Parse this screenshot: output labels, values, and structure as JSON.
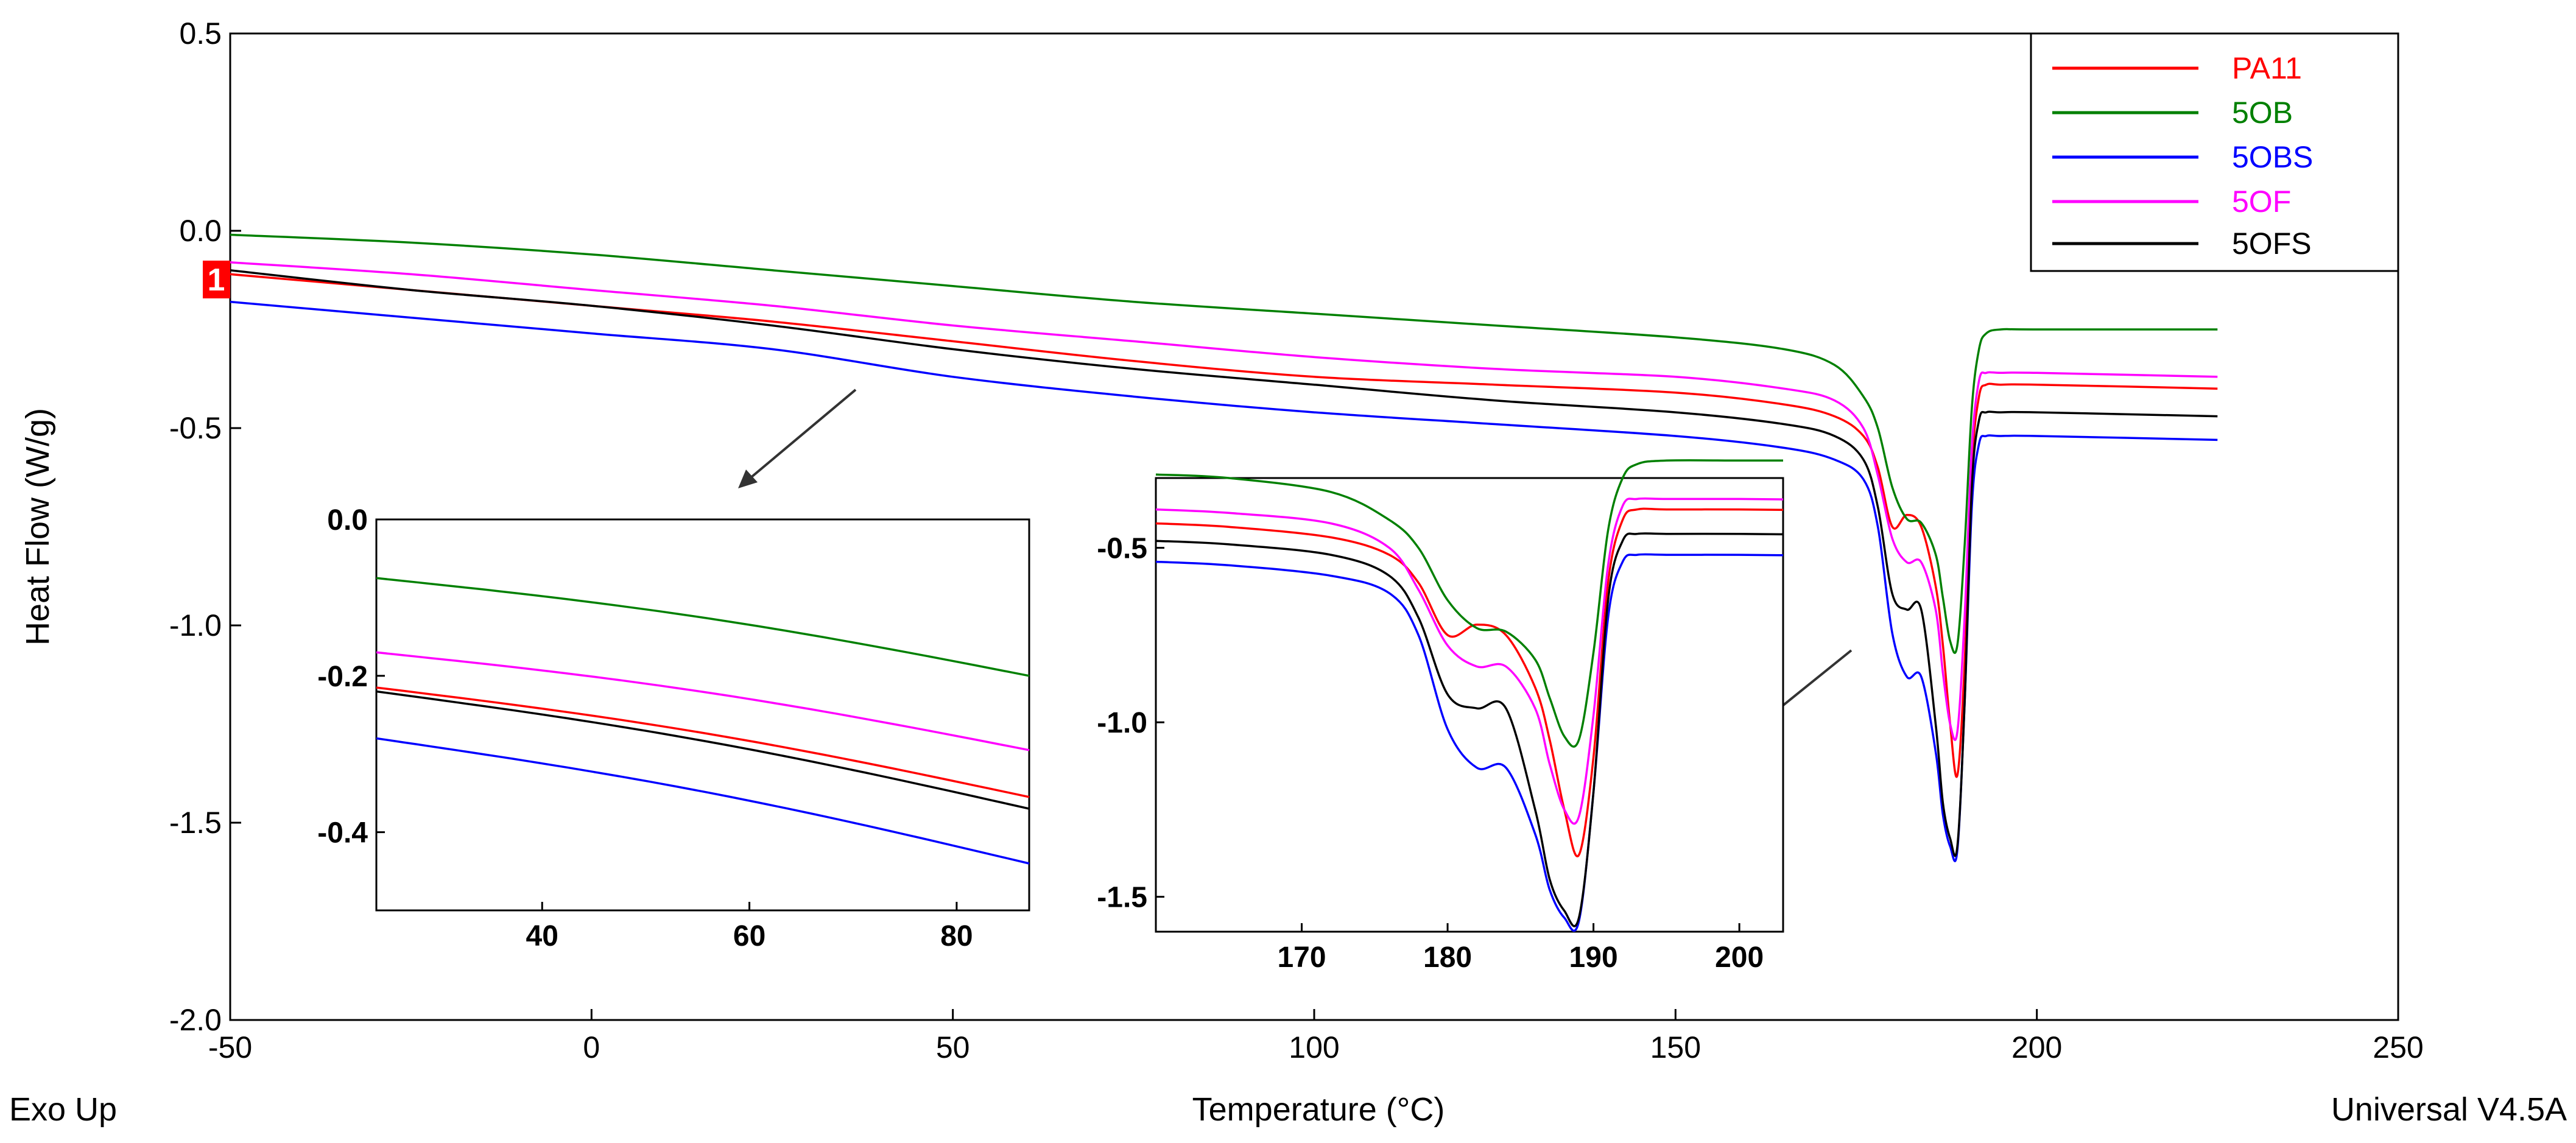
{
  "chart_data": {
    "type": "line",
    "title": "",
    "xlabel": "Temperature (°C)",
    "ylabel": "Heat Flow (W/g)",
    "x_ticks": [
      "-50",
      "0",
      "50",
      "100",
      "150",
      "200",
      "250"
    ],
    "y_ticks": [
      "0.5",
      "0.0",
      "-0.5",
      "-1.0",
      "-1.5",
      "-2.0"
    ],
    "xlim": [
      -50,
      250
    ],
    "ylim": [
      -2.0,
      0.5
    ],
    "grid": false,
    "legend_position": "top-right",
    "footer_left": "Exo Up",
    "footer_right": "Universal V4.5A",
    "marker_label": "1",
    "series": [
      {
        "name": "PA11",
        "color": "#ff0000",
        "x": [
          -50,
          -25,
          0,
          25,
          50,
          75,
          100,
          125,
          150,
          165,
          172,
          176,
          178,
          180,
          182,
          184,
          186,
          187,
          188,
          189,
          190,
          191,
          192,
          193,
          195,
          200,
          225
        ],
        "y": [
          -0.11,
          -0.15,
          -0.19,
          -0.23,
          -0.28,
          -0.33,
          -0.37,
          -0.39,
          -0.41,
          -0.44,
          -0.47,
          -0.52,
          -0.6,
          -0.75,
          -0.72,
          -0.75,
          -0.9,
          -1.05,
          -1.25,
          -1.38,
          -1.1,
          -0.6,
          -0.42,
          -0.39,
          -0.39,
          -0.39,
          -0.4
        ]
      },
      {
        "name": "5OB",
        "color": "#008000",
        "x": [
          -50,
          -25,
          0,
          25,
          50,
          75,
          100,
          125,
          150,
          165,
          172,
          176,
          178,
          180,
          182,
          184,
          186,
          187,
          188,
          189,
          190,
          191,
          192,
          193,
          195,
          200,
          225
        ],
        "y": [
          -0.01,
          -0.03,
          -0.06,
          -0.1,
          -0.14,
          -0.18,
          -0.21,
          -0.24,
          -0.27,
          -0.3,
          -0.34,
          -0.42,
          -0.5,
          -0.65,
          -0.73,
          -0.74,
          -0.82,
          -0.93,
          -1.04,
          -1.05,
          -0.8,
          -0.45,
          -0.3,
          -0.26,
          -0.25,
          -0.25,
          -0.25
        ]
      },
      {
        "name": "5OBS",
        "color": "#0000ff",
        "x": [
          -50,
          -25,
          0,
          25,
          50,
          75,
          100,
          125,
          150,
          165,
          172,
          176,
          178,
          180,
          182,
          184,
          186,
          187,
          188,
          189,
          190,
          191,
          192,
          193,
          195,
          200,
          225
        ],
        "y": [
          -0.18,
          -0.22,
          -0.26,
          -0.3,
          -0.37,
          -0.42,
          -0.46,
          -0.49,
          -0.52,
          -0.55,
          -0.58,
          -0.63,
          -0.75,
          -1.02,
          -1.13,
          -1.13,
          -1.32,
          -1.48,
          -1.56,
          -1.57,
          -1.2,
          -0.7,
          -0.54,
          -0.52,
          -0.52,
          -0.52,
          -0.53
        ]
      },
      {
        "name": "5OF",
        "color": "#ff00ff",
        "x": [
          -50,
          -25,
          0,
          25,
          50,
          75,
          100,
          125,
          150,
          165,
          172,
          176,
          178,
          180,
          182,
          184,
          186,
          187,
          188,
          189,
          190,
          191,
          192,
          193,
          195,
          200,
          225
        ],
        "y": [
          -0.08,
          -0.11,
          -0.15,
          -0.19,
          -0.24,
          -0.28,
          -0.32,
          -0.35,
          -0.37,
          -0.4,
          -0.43,
          -0.5,
          -0.62,
          -0.78,
          -0.84,
          -0.84,
          -0.96,
          -1.12,
          -1.25,
          -1.27,
          -0.98,
          -0.55,
          -0.38,
          -0.36,
          -0.36,
          -0.36,
          -0.37
        ]
      },
      {
        "name": "5OFS",
        "color": "#000000",
        "x": [
          -50,
          -25,
          0,
          25,
          50,
          75,
          100,
          125,
          150,
          165,
          172,
          176,
          178,
          180,
          182,
          184,
          186,
          187,
          188,
          189,
          190,
          191,
          192,
          193,
          195,
          200,
          225
        ],
        "y": [
          -0.1,
          -0.15,
          -0.19,
          -0.24,
          -0.3,
          -0.35,
          -0.39,
          -0.43,
          -0.46,
          -0.49,
          -0.52,
          -0.58,
          -0.7,
          -0.92,
          -0.96,
          -0.96,
          -1.25,
          -1.45,
          -1.54,
          -1.56,
          -1.2,
          -0.65,
          -0.48,
          -0.46,
          -0.46,
          -0.46,
          -0.47
        ]
      }
    ],
    "insets": [
      {
        "name": "inset-low",
        "xlim": [
          24,
          87
        ],
        "ylim": [
          -0.5,
          0.0
        ],
        "x_ticks": [
          "40",
          "60",
          "80"
        ],
        "y_ticks": [
          "0.0",
          "-0.2",
          "-0.4"
        ],
        "lines": [
          {
            "series": "5OB",
            "x": [
              24,
              87
            ],
            "y": [
              -0.075,
              -0.2
            ]
          },
          {
            "series": "5OF",
            "x": [
              24,
              87
            ],
            "y": [
              -0.17,
              -0.295
            ]
          },
          {
            "series": "PA11",
            "x": [
              24,
              87
            ],
            "y": [
              -0.215,
              -0.355
            ]
          },
          {
            "series": "5OFS",
            "x": [
              24,
              87
            ],
            "y": [
              -0.22,
              -0.37
            ]
          },
          {
            "series": "5OBS",
            "x": [
              24,
              87
            ],
            "y": [
              -0.28,
              -0.44
            ]
          }
        ]
      },
      {
        "name": "inset-melt",
        "xlim": [
          160,
          203
        ],
        "ylim": [
          -1.6,
          -0.3
        ],
        "x_ticks": [
          "170",
          "180",
          "190",
          "200"
        ],
        "y_ticks": [
          "-0.5",
          "-1.0",
          "-1.5"
        ]
      }
    ]
  }
}
